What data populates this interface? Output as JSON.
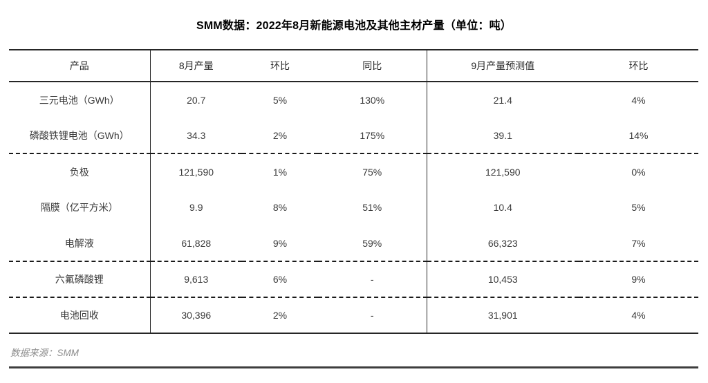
{
  "chart_data": {
    "type": "table",
    "title": "SMM数据：2022年8月新能源电池及其他主材产量（单位：吨）",
    "columns": [
      "产品",
      "8月产量",
      "环比",
      "同比",
      "9月产量预测值",
      "环比"
    ],
    "rows": [
      {
        "cells": [
          "三元电池（GWh）",
          "20.7",
          "5%",
          "130%",
          "21.4",
          "4%"
        ],
        "dashed_after": false
      },
      {
        "cells": [
          "磷酸铁锂电池（GWh）",
          "34.3",
          "2%",
          "175%",
          "39.1",
          "14%"
        ],
        "dashed_after": true
      },
      {
        "cells": [
          "负极",
          "121,590",
          "1%",
          "75%",
          "121,590",
          "0%"
        ],
        "dashed_after": false
      },
      {
        "cells": [
          "隔膜（亿平方米）",
          "9.9",
          "8%",
          "51%",
          "10.4",
          "5%"
        ],
        "dashed_after": false
      },
      {
        "cells": [
          "电解液",
          "61,828",
          "9%",
          "59%",
          "66,323",
          "7%"
        ],
        "dashed_after": true
      },
      {
        "cells": [
          "六氟磷酸锂",
          "9,613",
          "6%",
          "-",
          "10,453",
          "9%"
        ],
        "dashed_after": true
      },
      {
        "cells": [
          "电池回收",
          "30,396",
          "2%",
          "-",
          "31,901",
          "4%"
        ],
        "dashed_after": false
      }
    ],
    "source_note": "数据来源：SMM"
  },
  "colors": {
    "table_border": "#262626",
    "dashed_separator": "#1a1a1a",
    "body_text": "#3a3a3a",
    "source_text": "#8c8c8c",
    "bottom_rule": "#3d3d3d"
  }
}
